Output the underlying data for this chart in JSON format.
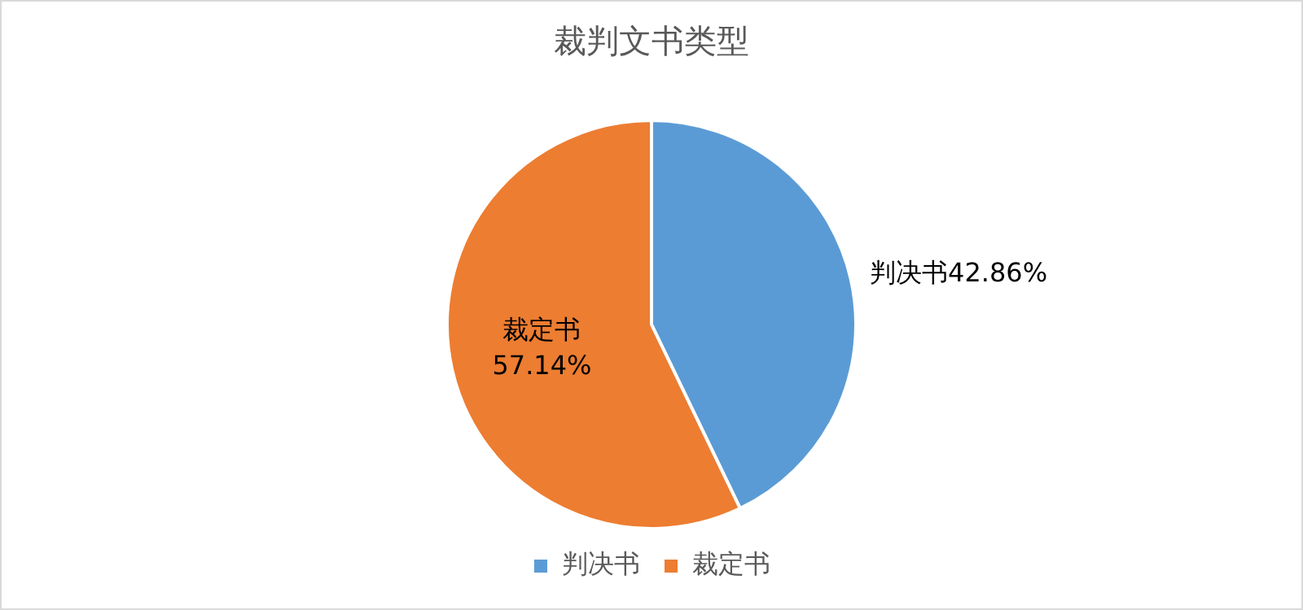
{
  "chart_data": {
    "type": "pie",
    "title": "裁判文书类型",
    "categories": [
      "判决书",
      "裁定书"
    ],
    "values": [
      42.86,
      57.14
    ],
    "value_labels": [
      "42.86%",
      "57.14%"
    ],
    "colors": [
      "#5b9bd5",
      "#ed7d31"
    ],
    "legend": "bottom"
  }
}
